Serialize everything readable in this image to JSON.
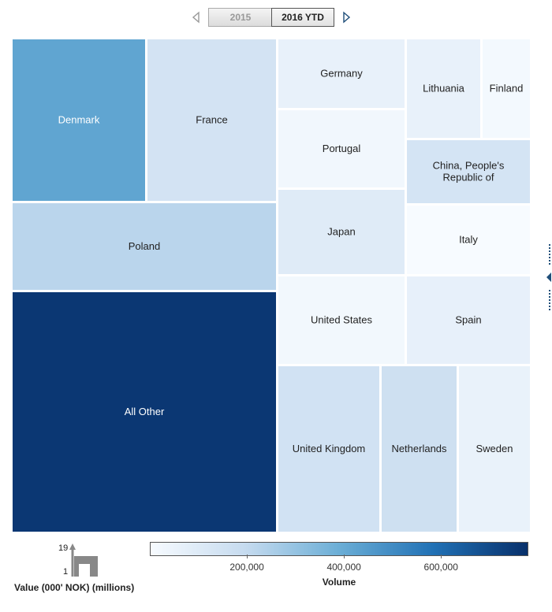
{
  "period_selector": {
    "options": [
      "2015",
      "2016 YTD"
    ],
    "selected": "2016 YTD",
    "prev_icon": "triangle-left-icon",
    "next_icon": "triangle-right-icon"
  },
  "chart_data": {
    "type": "treemap",
    "size_measure": "Value (000' NOK) (millions)",
    "color_measure": "Volume",
    "color_scale": {
      "min": 0,
      "max": 780000,
      "ticks": [
        "200,000",
        "400,000",
        "600,000"
      ],
      "tick_values": [
        200000,
        400000,
        600000
      ],
      "colors": [
        "#f7fbff",
        "#c6dbef",
        "#6baed6",
        "#2171b5",
        "#08306b"
      ]
    },
    "size_legend": {
      "max": "19",
      "min": "1"
    },
    "items": [
      {
        "name": "All Other",
        "volume": 760000
      },
      {
        "name": "Poland",
        "volume": 220000
      },
      {
        "name": "Denmark",
        "volume": 420000
      },
      {
        "name": "France",
        "volume": 145000
      },
      {
        "name": "Germany",
        "volume": 60000
      },
      {
        "name": "Portugal",
        "volume": 25000
      },
      {
        "name": "Japan",
        "volume": 95000
      },
      {
        "name": "United States",
        "volume": 20000
      },
      {
        "name": "United Kingdom",
        "volume": 150000
      },
      {
        "name": "Netherlands",
        "volume": 165000
      },
      {
        "name": "Sweden",
        "volume": 55000
      },
      {
        "name": "Lithuania",
        "volume": 60000
      },
      {
        "name": "Finland",
        "volume": 15000
      },
      {
        "name": "China, People's Republic of",
        "volume": 140000
      },
      {
        "name": "Italy",
        "volume": 0
      },
      {
        "name": "Spain",
        "volume": 65000
      }
    ]
  }
}
